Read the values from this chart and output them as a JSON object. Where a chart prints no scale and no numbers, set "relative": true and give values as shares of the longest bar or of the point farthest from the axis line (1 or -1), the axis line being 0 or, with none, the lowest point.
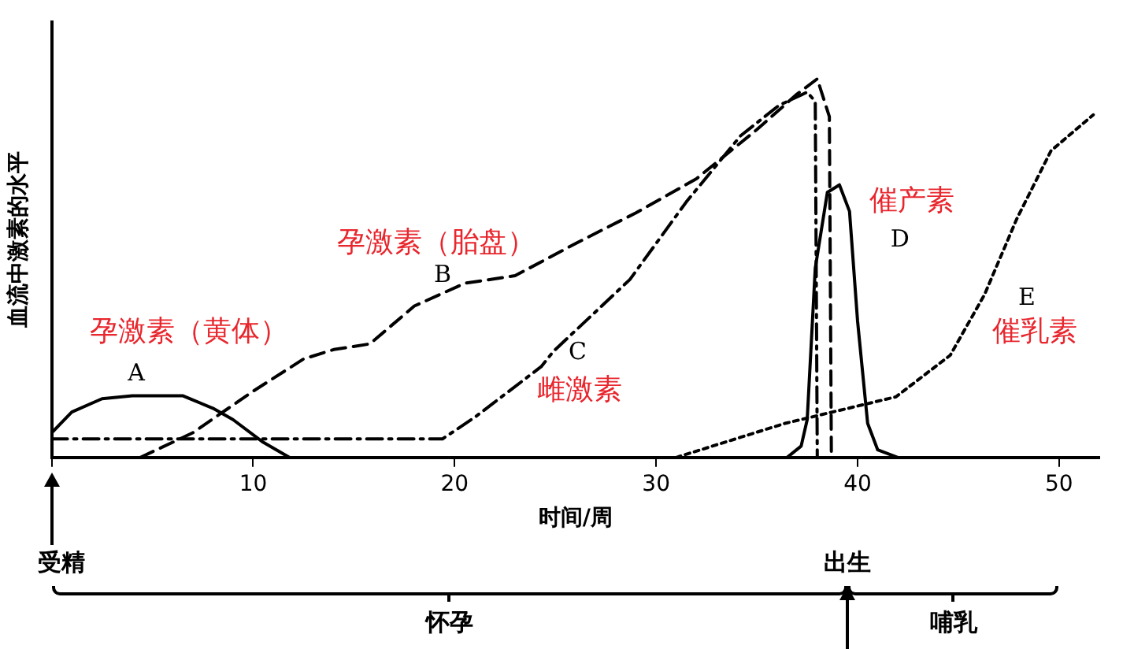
{
  "chart_data": {
    "type": "line",
    "relative": true,
    "ylabel": "血流中激素的水平",
    "xlabel": "时间/周",
    "xlim": [
      0,
      52
    ],
    "xticks": [
      {
        "value": 0,
        "label": null
      },
      10,
      20,
      30,
      40,
      50
    ],
    "grid": false,
    "legend": false,
    "marker": "none",
    "series": [
      {
        "name": "A",
        "color": "#000000",
        "line_style": "solid",
        "x": [
          0,
          1,
          2.5,
          4,
          6.5,
          8,
          9,
          10.5,
          11.8
        ],
        "values": [
          0.065,
          0.12,
          0.155,
          0.163,
          0.163,
          0.13,
          0.1,
          0.04,
          0
        ]
      },
      {
        "name": "B",
        "color": "#000000",
        "line_style": "dashed",
        "x": [
          4.4,
          7,
          10,
          12.5,
          14,
          15.8,
          18,
          20.5,
          23,
          26,
          29,
          32,
          35,
          37,
          38,
          38.6,
          38.7
        ],
        "values": [
          0,
          0.065,
          0.175,
          0.26,
          0.285,
          0.3,
          0.4,
          0.46,
          0.48,
          0.565,
          0.646,
          0.736,
          0.866,
          0.96,
          1,
          0.9,
          0
        ]
      },
      {
        "name": "C",
        "color": "#000000",
        "line_style": "dashdot",
        "x": [
          0,
          19.4,
          21,
          24.3,
          24.9,
          28.7,
          31.5,
          34.2,
          36.1,
          37.5,
          37.9,
          38
        ],
        "values": [
          0.049,
          0.049,
          0.106,
          0.24,
          0.28,
          0.47,
          0.675,
          0.85,
          0.93,
          0.965,
          0.94,
          0
        ]
      },
      {
        "name": "D",
        "color": "#000000",
        "line_style": "solid",
        "x": [
          36.5,
          37.2,
          37.5,
          37.9,
          38.5,
          39.1,
          39.6,
          40,
          40.5,
          41,
          42
        ],
        "values": [
          0,
          0.03,
          0.1,
          0.5,
          0.7,
          0.72,
          0.65,
          0.36,
          0.09,
          0.02,
          0
        ]
      },
      {
        "name": "E",
        "color": "#000000",
        "line_style": "dotted",
        "x": [
          31,
          36.4,
          41.9,
          44.6,
          46.3,
          47.9,
          49.6,
          51.7
        ],
        "values": [
          0,
          0.09,
          0.16,
          0.27,
          0.43,
          0.63,
          0.81,
          0.905
        ]
      }
    ],
    "annotations": [
      "孕激素（黄体）",
      "孕激素（胎盘）",
      "雌激素",
      "催产素",
      "催乳素",
      {
        "text": "受精",
        "x": 0
      },
      {
        "text": "出生",
        "x": 39.5
      },
      "怀孕",
      "哺乳"
    ]
  }
}
